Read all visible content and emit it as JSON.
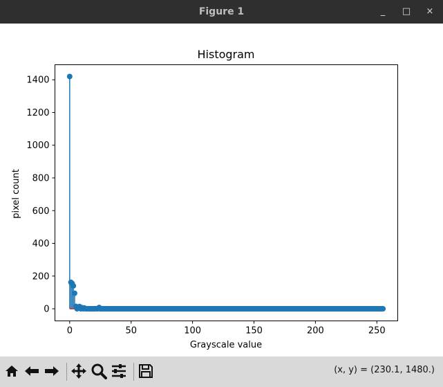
{
  "window": {
    "title": "Figure 1",
    "minimize_glyph": "_",
    "maximize_glyph": "□",
    "close_glyph": "×"
  },
  "toolbar": {
    "icons": [
      "home-icon",
      "back-arrow-icon",
      "forward-arrow-icon",
      "pan-icon",
      "zoom-icon",
      "configure-subplots-icon",
      "save-icon"
    ],
    "coords_text": "(x, y) = (230.1, 1480.)"
  },
  "colors": {
    "stem": "#1f77b4",
    "baseline": "#d62728",
    "titlebar": "#2f2f2f",
    "toolbar": "#d9d9d9"
  },
  "chart_data": {
    "type": "stem",
    "title": "Histogram",
    "xlabel": "Grayscale value",
    "ylabel": "pixel count",
    "xlim": [
      -12,
      267
    ],
    "ylim": [
      -74,
      1492
    ],
    "xticks": [
      0,
      50,
      100,
      150,
      200,
      250
    ],
    "yticks": [
      0,
      200,
      400,
      600,
      800,
      1000,
      1200,
      1400
    ],
    "grid": false,
    "baseline": 0,
    "nonzero_points": [
      {
        "x": 0,
        "y": 1420
      },
      {
        "x": 1,
        "y": 162
      },
      {
        "x": 2,
        "y": 155
      },
      {
        "x": 3,
        "y": 140
      },
      {
        "x": 4,
        "y": 95
      },
      {
        "x": 5,
        "y": 15
      },
      {
        "x": 7,
        "y": 10
      },
      {
        "x": 8,
        "y": 14
      },
      {
        "x": 10,
        "y": 7
      },
      {
        "x": 12,
        "y": 5
      },
      {
        "x": 24,
        "y": 8
      }
    ],
    "x_range": [
      0,
      255
    ],
    "default_y": 0
  }
}
